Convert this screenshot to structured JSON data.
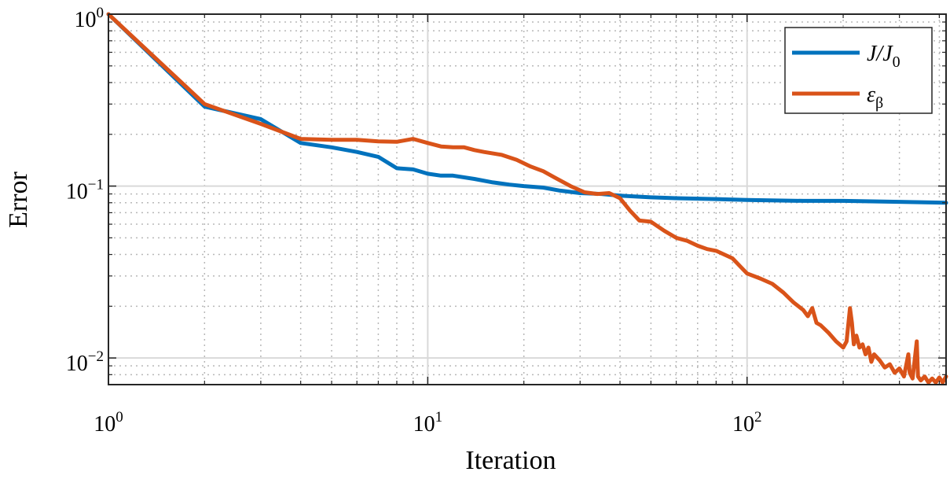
{
  "chart_data": {
    "type": "line",
    "xlabel": "Iteration",
    "ylabel": "Error",
    "xscale": "log",
    "yscale": "log",
    "xlim": [
      1,
      420
    ],
    "ylim": [
      0.007,
      1
    ],
    "grid": true,
    "legend_position": "top-right",
    "x_ticks": [
      {
        "value": 1,
        "base": "10",
        "exp": "0"
      },
      {
        "value": 10,
        "base": "10",
        "exp": "1"
      },
      {
        "value": 100,
        "base": "10",
        "exp": "2"
      }
    ],
    "y_ticks": [
      {
        "value": 1,
        "base": "10",
        "exp": "0"
      },
      {
        "value": 0.1,
        "base": "10",
        "exp": "−1"
      },
      {
        "value": 0.01,
        "base": "10",
        "exp": "−2"
      }
    ],
    "series": [
      {
        "name": "J/J_0",
        "legend_main": "J/J",
        "legend_sub": "0",
        "color": "#0072BD",
        "points": [
          [
            1,
            1.0
          ],
          [
            2,
            0.29
          ],
          [
            3,
            0.245
          ],
          [
            4,
            0.178
          ],
          [
            5,
            0.168
          ],
          [
            6,
            0.158
          ],
          [
            7,
            0.148
          ],
          [
            8,
            0.127
          ],
          [
            9,
            0.125
          ],
          [
            10,
            0.118
          ],
          [
            11,
            0.115
          ],
          [
            12,
            0.115
          ],
          [
            14,
            0.11
          ],
          [
            16,
            0.105
          ],
          [
            18,
            0.102
          ],
          [
            20,
            0.1
          ],
          [
            23,
            0.098
          ],
          [
            26,
            0.094
          ],
          [
            30,
            0.091
          ],
          [
            35,
            0.09
          ],
          [
            40,
            0.088
          ],
          [
            50,
            0.086
          ],
          [
            60,
            0.085
          ],
          [
            80,
            0.084
          ],
          [
            100,
            0.083
          ],
          [
            150,
            0.082
          ],
          [
            200,
            0.082
          ],
          [
            300,
            0.081
          ],
          [
            420,
            0.08
          ]
        ]
      },
      {
        "name": "ε_β",
        "legend_main": "ε",
        "legend_sub": "β",
        "color": "#D95319",
        "points": [
          [
            1,
            1.0
          ],
          [
            2,
            0.3
          ],
          [
            3,
            0.23
          ],
          [
            4,
            0.188
          ],
          [
            5,
            0.186
          ],
          [
            6,
            0.186
          ],
          [
            7,
            0.182
          ],
          [
            8,
            0.181
          ],
          [
            9,
            0.188
          ],
          [
            10,
            0.178
          ],
          [
            11,
            0.17
          ],
          [
            12,
            0.168
          ],
          [
            13,
            0.168
          ],
          [
            14,
            0.162
          ],
          [
            15,
            0.158
          ],
          [
            17,
            0.152
          ],
          [
            19,
            0.142
          ],
          [
            21,
            0.13
          ],
          [
            23,
            0.122
          ],
          [
            25,
            0.112
          ],
          [
            28,
            0.1
          ],
          [
            31,
            0.092
          ],
          [
            34,
            0.09
          ],
          [
            37,
            0.091
          ],
          [
            40,
            0.085
          ],
          [
            43,
            0.072
          ],
          [
            46,
            0.063
          ],
          [
            50,
            0.062
          ],
          [
            55,
            0.055
          ],
          [
            60,
            0.05
          ],
          [
            65,
            0.048
          ],
          [
            70,
            0.045
          ],
          [
            75,
            0.043
          ],
          [
            80,
            0.042
          ],
          [
            90,
            0.038
          ],
          [
            100,
            0.031
          ],
          [
            110,
            0.029
          ],
          [
            120,
            0.027
          ],
          [
            130,
            0.024
          ],
          [
            140,
            0.021
          ],
          [
            150,
            0.019
          ],
          [
            155,
            0.0175
          ],
          [
            160,
            0.0195
          ],
          [
            165,
            0.016
          ],
          [
            170,
            0.0155
          ],
          [
            180,
            0.014
          ],
          [
            190,
            0.0125
          ],
          [
            200,
            0.0115
          ],
          [
            205,
            0.0125
          ],
          [
            210,
            0.0195
          ],
          [
            213,
            0.016
          ],
          [
            216,
            0.012
          ],
          [
            220,
            0.0135
          ],
          [
            225,
            0.0115
          ],
          [
            230,
            0.012
          ],
          [
            235,
            0.0105
          ],
          [
            240,
            0.0115
          ],
          [
            245,
            0.0095
          ],
          [
            250,
            0.0105
          ],
          [
            260,
            0.0097
          ],
          [
            270,
            0.0088
          ],
          [
            280,
            0.0092
          ],
          [
            290,
            0.0082
          ],
          [
            300,
            0.0087
          ],
          [
            310,
            0.0078
          ],
          [
            320,
            0.0105
          ],
          [
            323,
            0.0082
          ],
          [
            330,
            0.0076
          ],
          [
            340,
            0.0125
          ],
          [
            343,
            0.0078
          ],
          [
            350,
            0.0074
          ],
          [
            360,
            0.0078
          ],
          [
            370,
            0.0072
          ],
          [
            380,
            0.0076
          ],
          [
            390,
            0.0072
          ],
          [
            400,
            0.0077
          ],
          [
            410,
            0.0072
          ],
          [
            420,
            0.0078
          ]
        ]
      }
    ]
  }
}
